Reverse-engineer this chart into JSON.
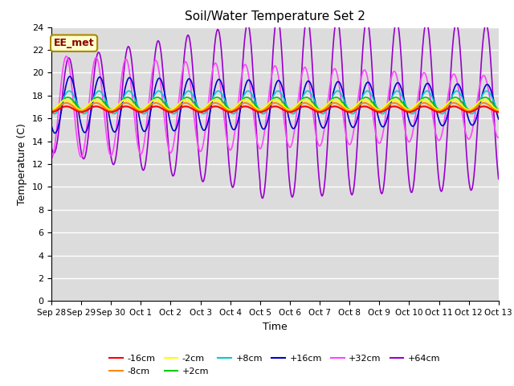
{
  "title": "Soil/Water Temperature Set 2",
  "xlabel": "Time",
  "ylabel": "Temperature (C)",
  "ylim": [
    0,
    24
  ],
  "yticks": [
    0,
    2,
    4,
    6,
    8,
    10,
    12,
    14,
    16,
    18,
    20,
    22,
    24
  ],
  "num_days": 15,
  "plot_bg_color": "#dcdcdc",
  "grid_color": "#ffffff",
  "xtick_labels": [
    "Sep 28",
    "Sep 29",
    "Sep 30",
    "Oct 1",
    "Oct 2",
    "Oct 3",
    "Oct 4",
    "Oct 5",
    "Oct 6",
    "Oct 7",
    "Oct 8",
    "Oct 9",
    "Oct 10",
    "Oct 11",
    "Oct 12",
    "Oct 13"
  ],
  "label_box": {
    "text": "EE_met",
    "fontsize": 9,
    "facecolor": "#ffffcc",
    "edgecolor": "#aa8800",
    "textcolor": "#880000"
  },
  "legend_rows": [
    [
      "-16cm",
      "#ff0000"
    ],
    [
      "-8cm",
      "#ff8800"
    ],
    [
      "-2cm",
      "#ffff00"
    ],
    [
      "+2cm",
      "#00cc00"
    ],
    [
      "+8cm",
      "#00cccc"
    ],
    [
      "+16cm",
      "#0000cc"
    ],
    [
      "+32cm",
      "#ff44ff"
    ],
    [
      "+64cm",
      "#9900cc"
    ]
  ]
}
